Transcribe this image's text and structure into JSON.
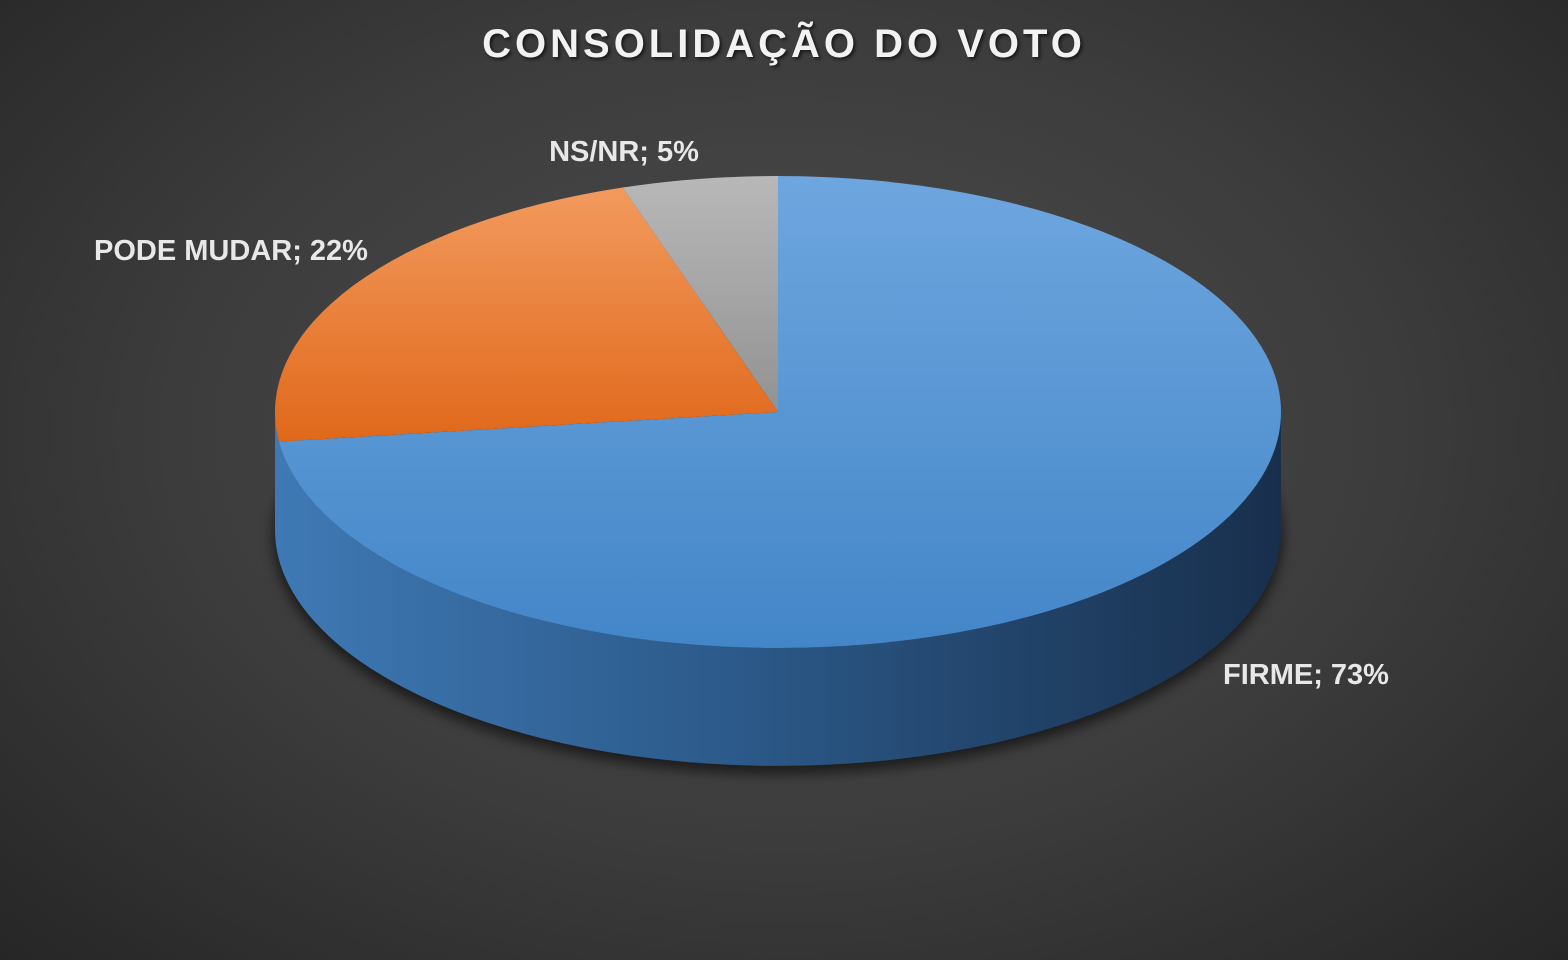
{
  "chart_data": {
    "type": "pie",
    "title": "CONSOLIDAÇÃO DO VOTO",
    "slices": [
      {
        "label": "FIRME",
        "value": 73,
        "display": "FIRME; 73%",
        "color": "#4a8fd2"
      },
      {
        "label": "PODE MUDAR",
        "value": 22,
        "display": "PODE MUDAR; 22%",
        "color": "#ec7a2a"
      },
      {
        "label": "NS/NR",
        "value": 5,
        "display": "NS/NR; 5%",
        "color": "#a6a6a6"
      }
    ],
    "style": "3d",
    "legend": "none"
  }
}
